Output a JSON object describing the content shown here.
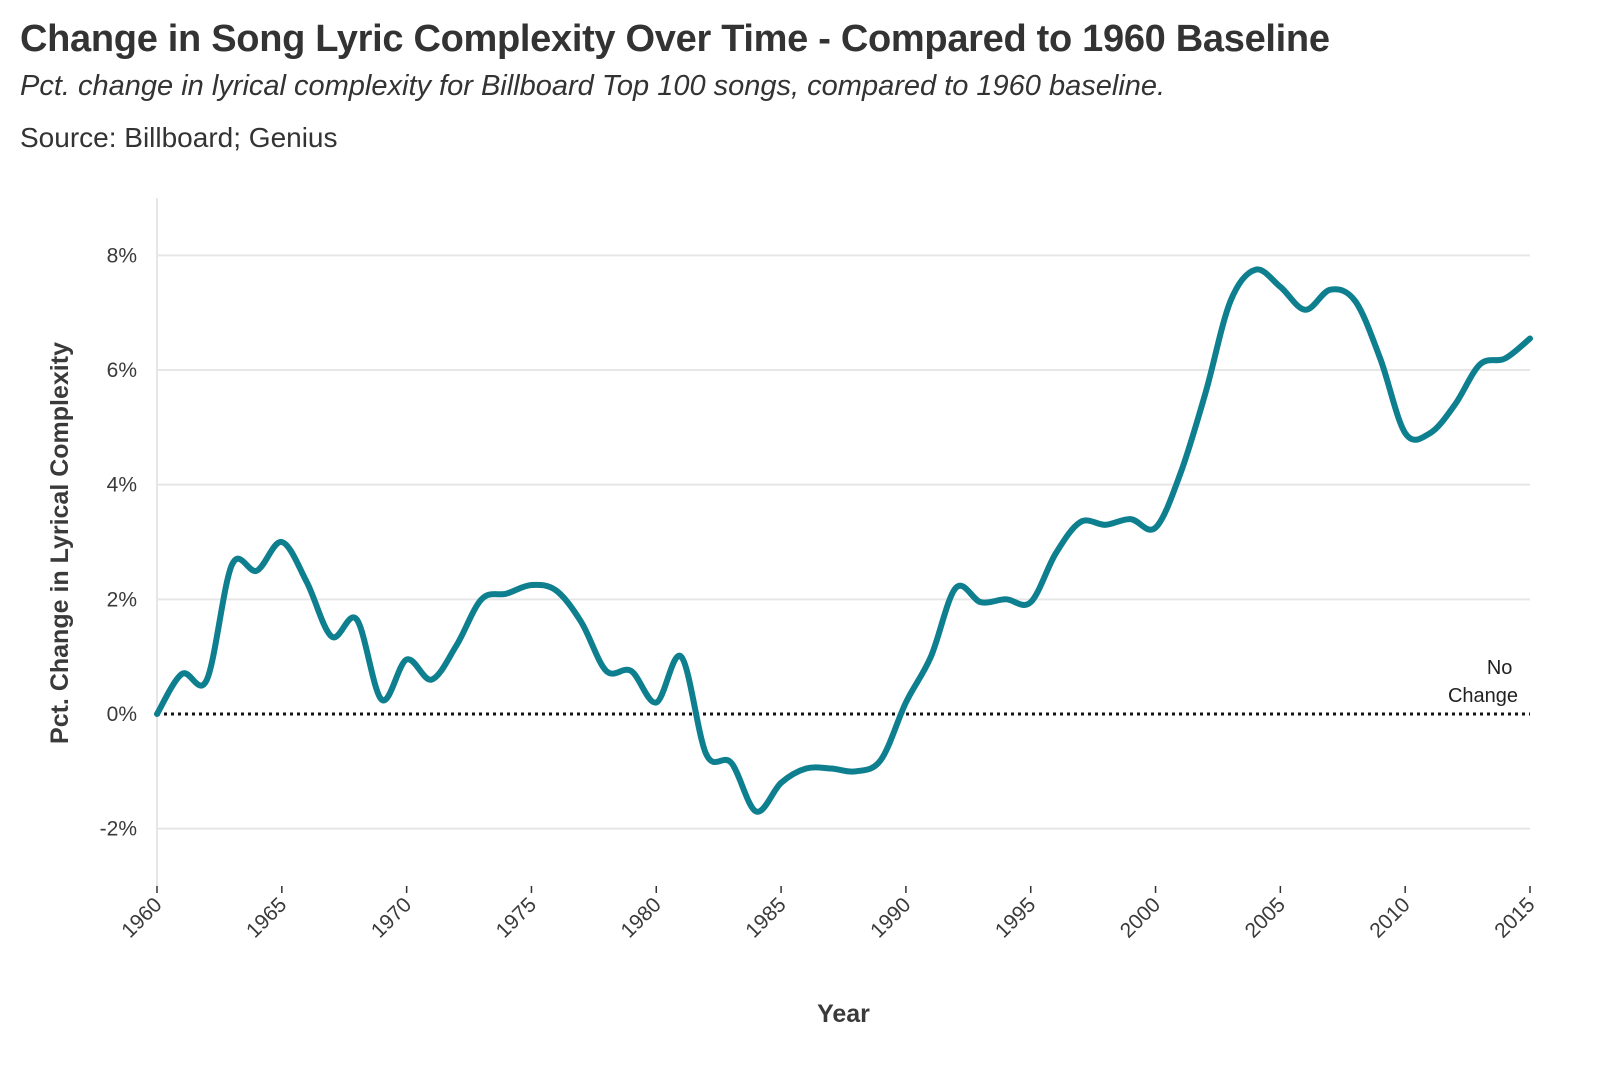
{
  "title": "Change in Song Lyric Complexity Over Time - Compared to 1960 Baseline",
  "subtitle": "Pct. change in lyrical complexity for Billboard Top 100 songs, compared to 1960 baseline.",
  "source": "Source: Billboard; Genius",
  "colors": {
    "line": "#0e7f8f",
    "grid": "#e6e6e6",
    "reference": "#111111",
    "text": "#333333"
  },
  "chart_data": {
    "type": "line",
    "title": "Change in Song Lyric Complexity Over Time - Compared to 1960 Baseline",
    "subtitle": "Pct. change in lyrical complexity for Billboard Top 100 songs, compared to 1960 baseline.",
    "xlabel": "Year",
    "ylabel": "Pct. Change in Lyrical Complexity",
    "xlim": [
      1960,
      2015
    ],
    "ylim": [
      -3,
      9
    ],
    "grid": "horizontal",
    "legend": "none",
    "x_ticks": [
      "1960",
      "1965",
      "1970",
      "1975",
      "1980",
      "1985",
      "1990",
      "1995",
      "2000",
      "2005",
      "2010",
      "2015"
    ],
    "y_ticks": [
      "-2%",
      "0%",
      "2%",
      "4%",
      "6%",
      "8%"
    ],
    "reference_line": {
      "y": 0,
      "style": "dotted",
      "label_lines": [
        "No",
        "Change"
      ]
    },
    "series": [
      {
        "x": [
          1960,
          1961,
          1962,
          1963,
          1964,
          1965,
          1966,
          1967,
          1968,
          1969,
          1970,
          1971,
          1972,
          1973,
          1974,
          1975,
          1976,
          1977,
          1978,
          1979,
          1980,
          1981,
          1982,
          1983,
          1984,
          1985,
          1986,
          1987,
          1988,
          1989,
          1990,
          1991,
          1992,
          1993,
          1994,
          1995,
          1996,
          1997,
          1998,
          1999,
          2000,
          2001,
          2002,
          2003,
          2004,
          2005,
          2006,
          2007,
          2008,
          2009,
          2010,
          2011,
          2012,
          2013,
          2014,
          2015
        ],
        "values": [
          0.0,
          0.7,
          0.6,
          2.6,
          2.5,
          3.0,
          2.3,
          1.35,
          1.65,
          0.25,
          0.95,
          0.6,
          1.2,
          2.0,
          2.1,
          2.25,
          2.15,
          1.6,
          0.75,
          0.75,
          0.2,
          1.0,
          -0.7,
          -0.85,
          -1.7,
          -1.2,
          -0.95,
          -0.95,
          -1.0,
          -0.8,
          0.2,
          1.0,
          2.2,
          1.95,
          2.0,
          1.95,
          2.8,
          3.35,
          3.3,
          3.4,
          3.25,
          4.2,
          5.6,
          7.2,
          7.75,
          7.45,
          7.05,
          7.4,
          7.2,
          6.2,
          4.9,
          4.9,
          5.4,
          6.1,
          6.2,
          6.55
        ]
      }
    ]
  }
}
